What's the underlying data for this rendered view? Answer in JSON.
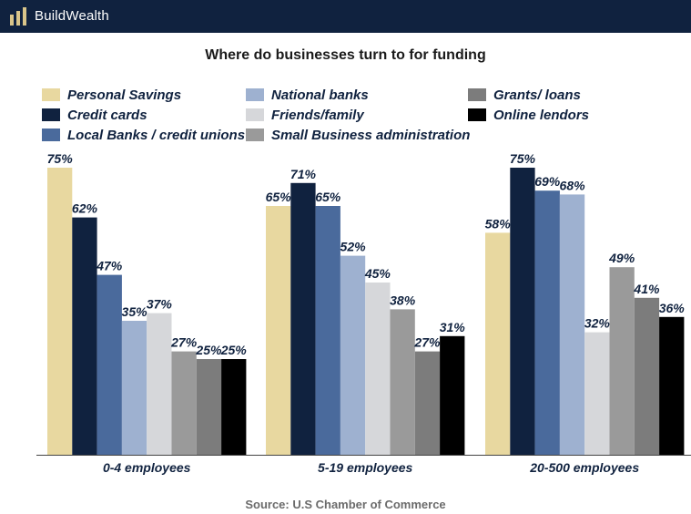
{
  "header": {
    "brand": "BuildWealth",
    "logo_icon": "bars-logo-icon",
    "background": "#10223f",
    "logo_color": "#d9c58a"
  },
  "chart_data": {
    "type": "bar",
    "title": "Where do businesses turn to for funding",
    "categories": [
      "0-4 employees",
      "5-19 employees",
      "20-500 employees"
    ],
    "series": [
      {
        "name": "Personal Savings",
        "color": "#e8d8a0",
        "values": [
          75,
          65,
          58
        ]
      },
      {
        "name": "Credit cards",
        "color": "#10223f",
        "values": [
          62,
          71,
          75
        ]
      },
      {
        "name": "Local Banks / credit unions",
        "color": "#4a6a9c",
        "values": [
          47,
          65,
          69
        ]
      },
      {
        "name": "National banks",
        "color": "#9eb1d0",
        "values": [
          35,
          52,
          68
        ]
      },
      {
        "name": "Friends/family",
        "color": "#d6d7da",
        "values": [
          37,
          45,
          32
        ]
      },
      {
        "name": "Small Business administration",
        "color": "#9a9a9a",
        "values": [
          27,
          38,
          49
        ]
      },
      {
        "name": "Grants/ loans",
        "color": "#7c7c7c",
        "values": [
          25,
          27,
          41
        ]
      },
      {
        "name": "Online lendors",
        "color": "#000000",
        "values": [
          25,
          31,
          36
        ]
      }
    ],
    "value_suffix": "%",
    "ylim": [
      0,
      80
    ],
    "grid": false,
    "legend_position": "top",
    "source": "Source: U.S Chamber of Commerce"
  }
}
